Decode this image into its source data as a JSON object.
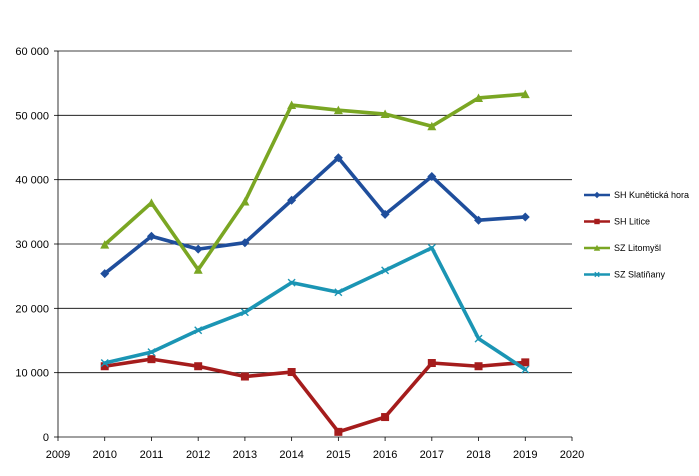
{
  "chart_data": {
    "type": "line",
    "x": [
      2010,
      2011,
      2012,
      2013,
      2014,
      2015,
      2016,
      2017,
      2018,
      2019
    ],
    "xlim": [
      2009,
      2020
    ],
    "xticks": [
      "2009",
      "2010",
      "2011",
      "2012",
      "2013",
      "2014",
      "2015",
      "2016",
      "2017",
      "2018",
      "2019",
      "2020"
    ],
    "ylim": [
      0,
      60000
    ],
    "yticks": [
      "0",
      "10 000",
      "20 000",
      "30 000",
      "40 000",
      "50 000",
      "60 000"
    ],
    "grid": "horizontal",
    "legend_position": "right",
    "series": [
      {
        "name": "SH Kunětická  hora",
        "color": "#1f4e9c",
        "marker": "diamond",
        "values": [
          25400,
          31200,
          29200,
          30200,
          36800,
          43400,
          34600,
          40500,
          33700,
          34200
        ]
      },
      {
        "name": "SH Litice",
        "color": "#a51c1c",
        "marker": "square",
        "values": [
          11000,
          12100,
          11000,
          9400,
          10100,
          800,
          3100,
          11500,
          11000,
          11600
        ]
      },
      {
        "name": "SZ Litomyšl",
        "color": "#7aa623",
        "marker": "triangle",
        "values": [
          29900,
          36400,
          26000,
          36600,
          51600,
          50800,
          50200,
          48300,
          52700,
          53300
        ]
      },
      {
        "name": "SZ Slatiňany",
        "color": "#1b95b4",
        "marker": "x",
        "values": [
          11500,
          13200,
          16600,
          19400,
          24000,
          22500,
          25900,
          29400,
          15300,
          10500
        ]
      }
    ]
  }
}
